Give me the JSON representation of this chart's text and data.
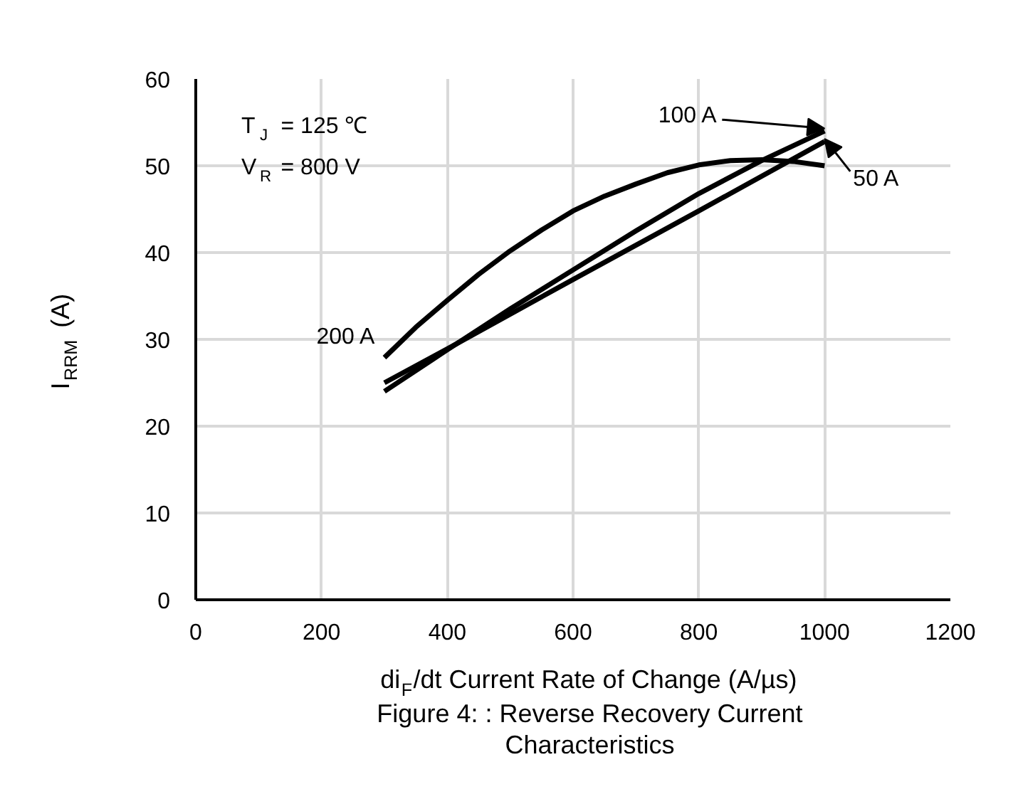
{
  "chart_data": {
    "type": "line",
    "xlabel": "di$_{F}$/dt Current Rate of Change (A/µs)",
    "ylabel": "I$_{RRM}$ (A)",
    "xlim": [
      0,
      1200
    ],
    "xticks": [
      0,
      200,
      400,
      600,
      800,
      1000,
      1200
    ],
    "ylim": [
      0,
      60
    ],
    "yticks": [
      0,
      10,
      20,
      30,
      40,
      50,
      60
    ],
    "grid": true,
    "line_style": "solid",
    "marker": "none",
    "series": [
      {
        "name": "200 A",
        "color": "#000000",
        "x": [
          300,
          350,
          400,
          450,
          500,
          550,
          600,
          650,
          700,
          750,
          800,
          850,
          900,
          950,
          1000
        ],
        "values": [
          27.9,
          31.4,
          34.5,
          37.5,
          40.2,
          42.6,
          44.8,
          46.5,
          47.9,
          49.2,
          50.1,
          50.6,
          50.7,
          50.5,
          50.0
        ]
      },
      {
        "name": "100 A",
        "color": "#000000",
        "x": [
          300,
          400,
          500,
          600,
          700,
          800,
          900,
          1000
        ],
        "values": [
          24.0,
          28.8,
          33.5,
          38.0,
          42.5,
          46.8,
          50.6,
          54.0
        ]
      },
      {
        "name": "50 A",
        "color": "#000000",
        "x": [
          300,
          400,
          600,
          800,
          1000
        ],
        "values": [
          25.0,
          28.9,
          36.9,
          44.8,
          52.8
        ]
      }
    ],
    "annotations": [
      "T$_{J}$ = 125 ℃",
      "V$_{R}$ = 800 V",
      "Figure 4: : Reverse Recovery Current Characteristics"
    ]
  }
}
